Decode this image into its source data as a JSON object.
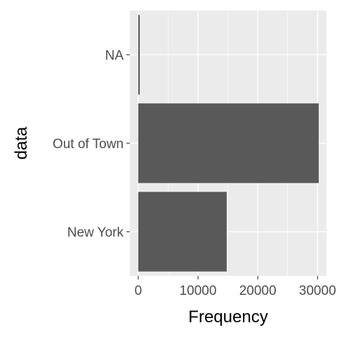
{
  "chart_data": {
    "type": "bar",
    "orientation": "horizontal",
    "categories": [
      "New York",
      "Out of Town",
      "NA"
    ],
    "values": [
      14800,
      30200,
      250
    ],
    "xlabel": "Frequency",
    "ylabel": "data",
    "xlim": [
      -1400,
      31500
    ],
    "x_ticks": [
      0,
      10000,
      20000,
      30000
    ],
    "x_tick_labels": [
      "0",
      "10000",
      "20000",
      "30000"
    ],
    "grid": true,
    "legend": "none",
    "colors": {
      "panel_background": "#ebebeb",
      "grid": "#ffffff",
      "bar": "#595959",
      "tick_text": "#4d4d4d",
      "axis_title": "#000000"
    }
  }
}
